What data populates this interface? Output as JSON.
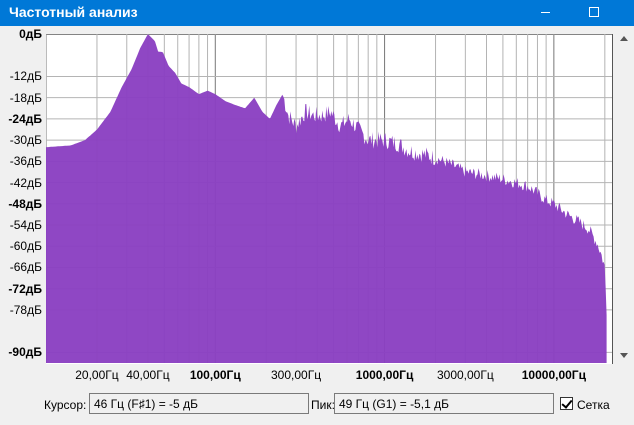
{
  "window": {
    "title": "Частотный анализ"
  },
  "chart_data": {
    "type": "area",
    "title": "",
    "xlabel": "",
    "ylabel": "",
    "x_scale": "log",
    "xlim": [
      10,
      22050
    ],
    "ylim": [
      -93,
      0
    ],
    "grid": true,
    "fill_color": "#8a3fc2",
    "x_tick_labels": [
      {
        "hz": 20,
        "label": "20,00Гц",
        "bold": false
      },
      {
        "hz": 40,
        "label": "40,00Гц",
        "bold": false
      },
      {
        "hz": 100,
        "label": "100,00Гц",
        "bold": true
      },
      {
        "hz": 300,
        "label": "300,00Гц",
        "bold": false
      },
      {
        "hz": 1000,
        "label": "1000,00Гц",
        "bold": true
      },
      {
        "hz": 3000,
        "label": "3000,00Гц",
        "bold": false
      },
      {
        "hz": 10000,
        "label": "10000,00Гц",
        "bold": true
      }
    ],
    "y_tick_labels": [
      {
        "db": 0,
        "label": "0дБ",
        "bold": true
      },
      {
        "db": -12,
        "label": "-12дБ",
        "bold": false
      },
      {
        "db": -18,
        "label": "-18дБ",
        "bold": false
      },
      {
        "db": -24,
        "label": "-24дБ",
        "bold": true
      },
      {
        "db": -30,
        "label": "-30дБ",
        "bold": false
      },
      {
        "db": -36,
        "label": "-36дБ",
        "bold": false
      },
      {
        "db": -42,
        "label": "-42дБ",
        "bold": false
      },
      {
        "db": -48,
        "label": "-48дБ",
        "bold": true
      },
      {
        "db": -54,
        "label": "-54дБ",
        "bold": false
      },
      {
        "db": -60,
        "label": "-60дБ",
        "bold": false
      },
      {
        "db": -66,
        "label": "-66дБ",
        "bold": false
      },
      {
        "db": -72,
        "label": "-72дБ",
        "bold": true
      },
      {
        "db": -78,
        "label": "-78дБ",
        "bold": false
      },
      {
        "db": -90,
        "label": "-90дБ",
        "bold": true
      }
    ],
    "series": [
      {
        "x": [
          10,
          14,
          17,
          20,
          24,
          28,
          32,
          36,
          40,
          44,
          46,
          49,
          53,
          58,
          63,
          70,
          80,
          90,
          100,
          115,
          130,
          150,
          170,
          190,
          210,
          230,
          250,
          270,
          300,
          340,
          380,
          430,
          480,
          550,
          620,
          700,
          800,
          900,
          1000,
          1200,
          1400,
          1700,
          2000,
          2500,
          3000,
          4000,
          5000,
          6000,
          7000,
          8000,
          9000,
          10000,
          12000,
          14000,
          16000,
          18000,
          19000,
          20000,
          20500
        ],
        "y": [
          -32,
          -31.5,
          -30,
          -27,
          -22,
          -15,
          -10,
          -4,
          0,
          -2,
          -5,
          -5.1,
          -9,
          -11,
          -14,
          -15,
          -17,
          -16,
          -17,
          -19,
          -20,
          -21,
          -18,
          -22,
          -24,
          -20,
          -17,
          -23,
          -26,
          -22,
          -23,
          -23,
          -22,
          -26,
          -24,
          -27,
          -30,
          -30,
          -30,
          -31,
          -33,
          -34,
          -35,
          -37,
          -39,
          -40,
          -41,
          -42,
          -43,
          -45,
          -47,
          -48,
          -51,
          -53,
          -55,
          -59,
          -62,
          -66,
          -78
        ]
      }
    ]
  },
  "status": {
    "cursor_label": "Курсор:",
    "cursor_value": "46 Гц (F♯1) = -5 дБ",
    "peak_label": "Пик:",
    "peak_value": "49 Гц (G1) = -5,1 дБ",
    "grid_label": "Сетка",
    "grid_checked": true
  }
}
